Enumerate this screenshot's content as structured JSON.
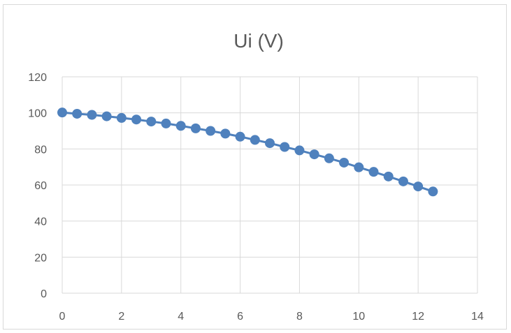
{
  "chart_data": {
    "type": "scatter",
    "title": "Ui (V)",
    "xlabel": "",
    "ylabel": "",
    "xlim": [
      0,
      14
    ],
    "ylim": [
      0,
      120
    ],
    "xticks": [
      0,
      2,
      4,
      6,
      8,
      10,
      12,
      14
    ],
    "yticks": [
      0,
      20,
      40,
      60,
      80,
      100,
      120
    ],
    "grid": true,
    "legend": "none",
    "series": [
      {
        "color": "#4f81bd",
        "marker": "circle",
        "line": "smooth",
        "x": [
          0,
          0.5,
          1,
          1.5,
          2,
          2.5,
          3,
          3.5,
          4,
          4.5,
          5,
          5.5,
          6,
          6.5,
          7,
          7.5,
          8,
          8.5,
          9,
          9.5,
          10,
          10.5,
          11,
          11.5,
          12,
          12.5
        ],
        "y": [
          100.2,
          99.5,
          98.9,
          98.1,
          97.2,
          96.3,
          95.2,
          94.1,
          92.8,
          91.4,
          90.0,
          88.5,
          86.8,
          85.0,
          83.2,
          81.1,
          79.2,
          77.0,
          74.8,
          72.4,
          69.8,
          67.3,
          64.7,
          62.0,
          59.2,
          56.4
        ]
      }
    ],
    "gridline_color": "#d9d9d9",
    "text_color": "#595959"
  }
}
